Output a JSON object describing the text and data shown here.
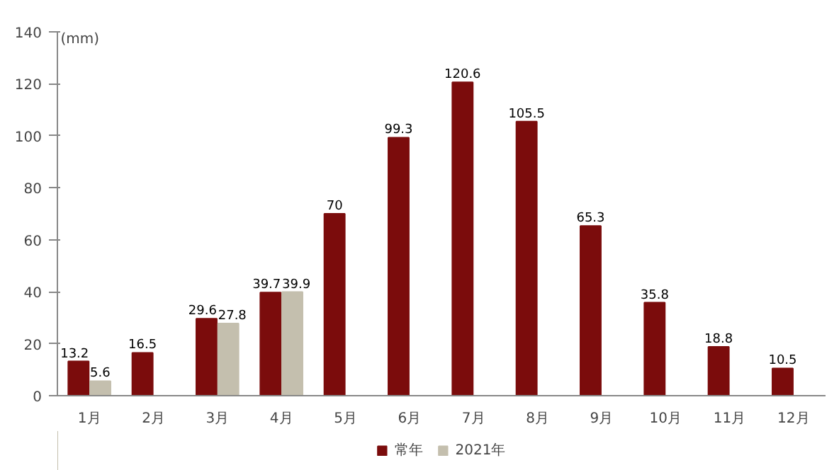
{
  "chart_data": {
    "type": "bar",
    "ylabel": "(mm)",
    "categories": [
      "1月",
      "2月",
      "3月",
      "4月",
      "5月",
      "6月",
      "7月",
      "8月",
      "9月",
      "10月",
      "11月",
      "12月"
    ],
    "series": [
      {
        "name": "常年",
        "color": "#7b0c0c",
        "values": [
          13.2,
          16.5,
          29.6,
          39.7,
          70,
          99.3,
          120.6,
          105.5,
          65.3,
          35.8,
          18.8,
          10.5
        ]
      },
      {
        "name": "2021年",
        "color": "#c4bfae",
        "values": [
          5.6,
          null,
          27.8,
          39.9,
          null,
          null,
          null,
          null,
          null,
          null,
          null,
          null
        ]
      }
    ],
    "ylim": [
      0,
      140
    ],
    "yticks": [
      0,
      20,
      40,
      60,
      80,
      100,
      120,
      140
    ],
    "data_labels": true,
    "legend": "bottom",
    "grid": false
  }
}
